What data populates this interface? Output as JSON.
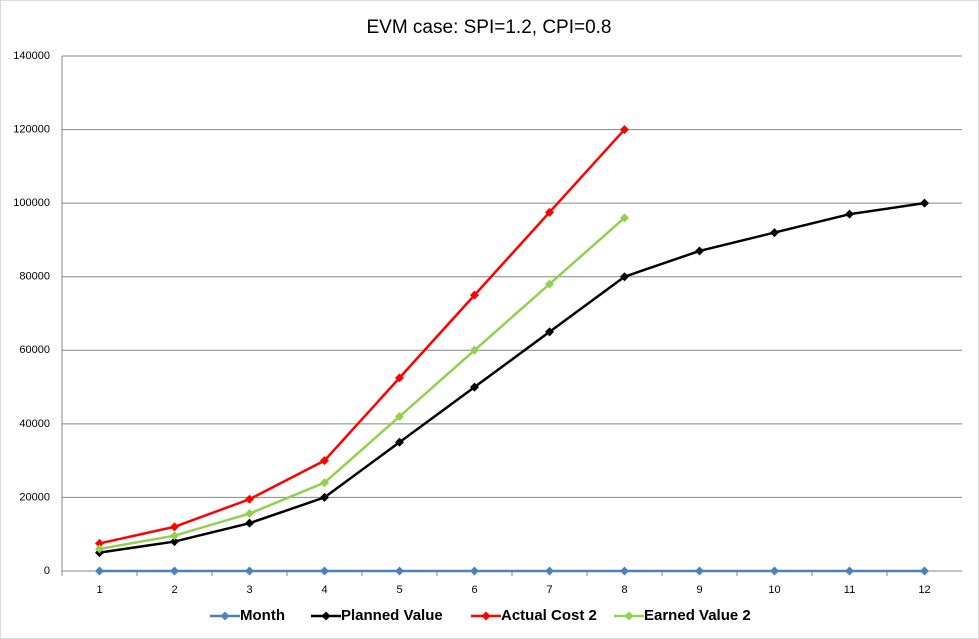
{
  "chart_data": {
    "type": "line",
    "title": "EVM case: SPI=1.2, CPI=0.8",
    "categories": [
      1,
      2,
      3,
      4,
      5,
      6,
      7,
      8,
      9,
      10,
      11,
      12
    ],
    "series": [
      {
        "name": "Month",
        "color": "#4f81bd",
        "values": [
          1,
          2,
          3,
          4,
          5,
          6,
          7,
          8,
          9,
          10,
          11,
          12
        ]
      },
      {
        "name": "Planned Value",
        "color": "#000000",
        "values": [
          5000,
          8000,
          13000,
          20000,
          35000,
          50000,
          65000,
          80000,
          87000,
          92000,
          97000,
          100000
        ]
      },
      {
        "name": "Actual Cost 2",
        "color": "#ff0000",
        "values": [
          7500,
          12000,
          19500,
          30000,
          52500,
          75000,
          97500,
          120000,
          null,
          null,
          null,
          null
        ]
      },
      {
        "name": "Earned Value 2",
        "color": "#92d050",
        "values": [
          6000,
          9600,
          15600,
          24000,
          42000,
          60000,
          78000,
          96000,
          null,
          null,
          null,
          null
        ]
      }
    ],
    "ylim": [
      0,
      140000
    ],
    "yticks": [
      0,
      20000,
      40000,
      60000,
      80000,
      100000,
      120000,
      140000
    ],
    "grid": true,
    "legend": "bottom"
  }
}
